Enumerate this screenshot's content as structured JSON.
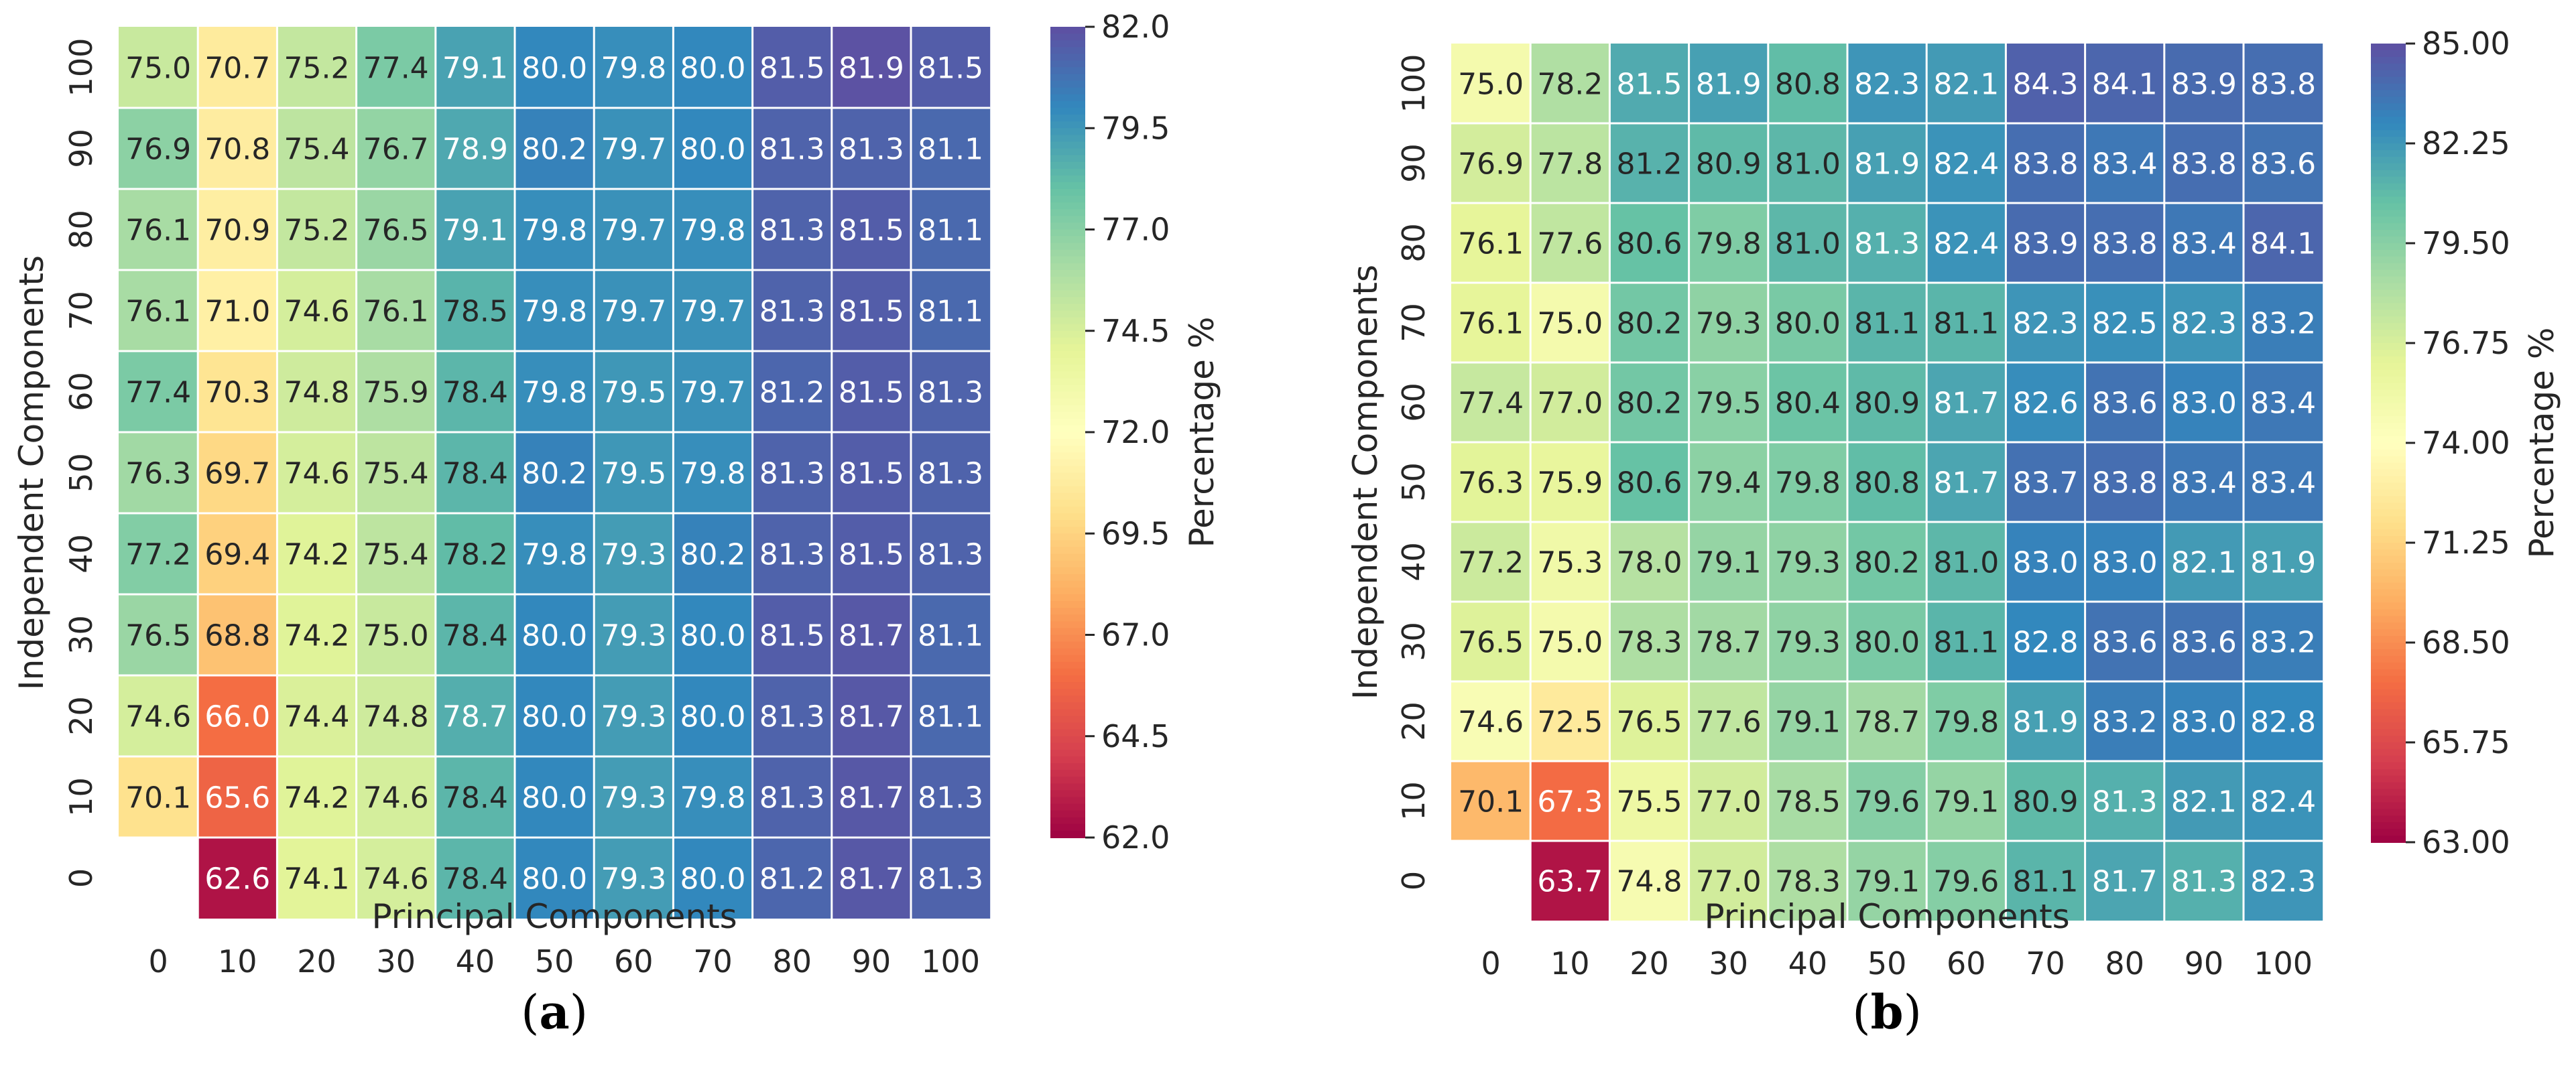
{
  "chart_data": [
    {
      "type": "heatmap",
      "panel_label": "(a)",
      "panel_letter": "a",
      "xlabel": "Principal Components",
      "ylabel": "Independent Components",
      "colorbar_label": "Percentage %",
      "x_ticks": [
        "0",
        "10",
        "20",
        "30",
        "40",
        "50",
        "60",
        "70",
        "80",
        "90",
        "100"
      ],
      "y_ticks": [
        "100",
        "90",
        "80",
        "70",
        "60",
        "50",
        "40",
        "30",
        "20",
        "10",
        "0"
      ],
      "values": [
        [
          75.0,
          70.7,
          75.2,
          77.4,
          79.1,
          80.0,
          79.8,
          80.0,
          81.5,
          81.9,
          81.5
        ],
        [
          76.9,
          70.8,
          75.4,
          76.7,
          78.9,
          80.2,
          79.7,
          80.0,
          81.3,
          81.3,
          81.1
        ],
        [
          76.1,
          70.9,
          75.2,
          76.5,
          79.1,
          79.8,
          79.7,
          79.8,
          81.3,
          81.5,
          81.1
        ],
        [
          76.1,
          71.0,
          74.6,
          76.1,
          78.5,
          79.8,
          79.7,
          79.7,
          81.3,
          81.5,
          81.1
        ],
        [
          77.4,
          70.3,
          74.8,
          75.9,
          78.4,
          79.8,
          79.5,
          79.7,
          81.2,
          81.5,
          81.3
        ],
        [
          76.3,
          69.7,
          74.6,
          75.4,
          78.4,
          80.2,
          79.5,
          79.8,
          81.3,
          81.5,
          81.3
        ],
        [
          77.2,
          69.4,
          74.2,
          75.4,
          78.2,
          79.8,
          79.3,
          80.2,
          81.3,
          81.5,
          81.3
        ],
        [
          76.5,
          68.8,
          74.2,
          75.0,
          78.4,
          80.0,
          79.3,
          80.0,
          81.5,
          81.7,
          81.1
        ],
        [
          74.6,
          66.0,
          74.4,
          74.8,
          78.7,
          80.0,
          79.3,
          80.0,
          81.3,
          81.7,
          81.1
        ],
        [
          70.1,
          65.6,
          74.2,
          74.6,
          78.4,
          80.0,
          79.3,
          79.8,
          81.3,
          81.7,
          81.3
        ],
        [
          null,
          62.6,
          74.1,
          74.6,
          78.4,
          80.0,
          79.3,
          80.0,
          81.2,
          81.7,
          81.3
        ]
      ],
      "vmin": 62.0,
      "vmax": 82.0,
      "colorbar_ticks": [
        "82.0",
        "79.5",
        "77.0",
        "74.5",
        "72.0",
        "69.5",
        "67.0",
        "64.5",
        "62.0"
      ],
      "colormap": "Spectral"
    },
    {
      "type": "heatmap",
      "panel_label": "(b)",
      "panel_letter": "b",
      "xlabel": "Principal Components",
      "ylabel": "Independent Components",
      "colorbar_label": "Percentage %",
      "x_ticks": [
        "0",
        "10",
        "20",
        "30",
        "40",
        "50",
        "60",
        "70",
        "80",
        "90",
        "100"
      ],
      "y_ticks": [
        "100",
        "90",
        "80",
        "70",
        "60",
        "50",
        "40",
        "30",
        "20",
        "10",
        "0"
      ],
      "values": [
        [
          75.0,
          78.2,
          81.5,
          81.9,
          80.8,
          82.3,
          82.1,
          84.3,
          84.1,
          83.9,
          83.8
        ],
        [
          76.9,
          77.8,
          81.2,
          80.9,
          81.0,
          81.9,
          82.4,
          83.8,
          83.4,
          83.8,
          83.6
        ],
        [
          76.1,
          77.6,
          80.6,
          79.8,
          81.0,
          81.3,
          82.4,
          83.9,
          83.8,
          83.4,
          84.1
        ],
        [
          76.1,
          75.0,
          80.2,
          79.3,
          80.0,
          81.1,
          81.1,
          82.3,
          82.5,
          82.3,
          83.2
        ],
        [
          77.4,
          77.0,
          80.2,
          79.5,
          80.4,
          80.9,
          81.7,
          82.6,
          83.6,
          83.0,
          83.4
        ],
        [
          76.3,
          75.9,
          80.6,
          79.4,
          79.8,
          80.8,
          81.7,
          83.7,
          83.8,
          83.4,
          83.4
        ],
        [
          77.2,
          75.3,
          78.0,
          79.1,
          79.3,
          80.2,
          81.0,
          83.0,
          83.0,
          82.1,
          81.9
        ],
        [
          76.5,
          75.0,
          78.3,
          78.7,
          79.3,
          80.0,
          81.1,
          82.8,
          83.6,
          83.6,
          83.2
        ],
        [
          74.6,
          72.5,
          76.5,
          77.6,
          79.1,
          78.7,
          79.8,
          81.9,
          83.2,
          83.0,
          82.8
        ],
        [
          70.1,
          67.3,
          75.5,
          77.0,
          78.5,
          79.6,
          79.1,
          80.9,
          81.3,
          82.1,
          82.4
        ],
        [
          null,
          63.7,
          74.8,
          77.0,
          78.3,
          79.1,
          79.6,
          81.1,
          81.7,
          81.3,
          82.3
        ]
      ],
      "vmin": 63.0,
      "vmax": 85.0,
      "colorbar_ticks": [
        "85.00",
        "82.25",
        "79.50",
        "76.75",
        "74.00",
        "71.25",
        "68.50",
        "65.75",
        "63.00"
      ],
      "colormap": "Spectral"
    }
  ]
}
